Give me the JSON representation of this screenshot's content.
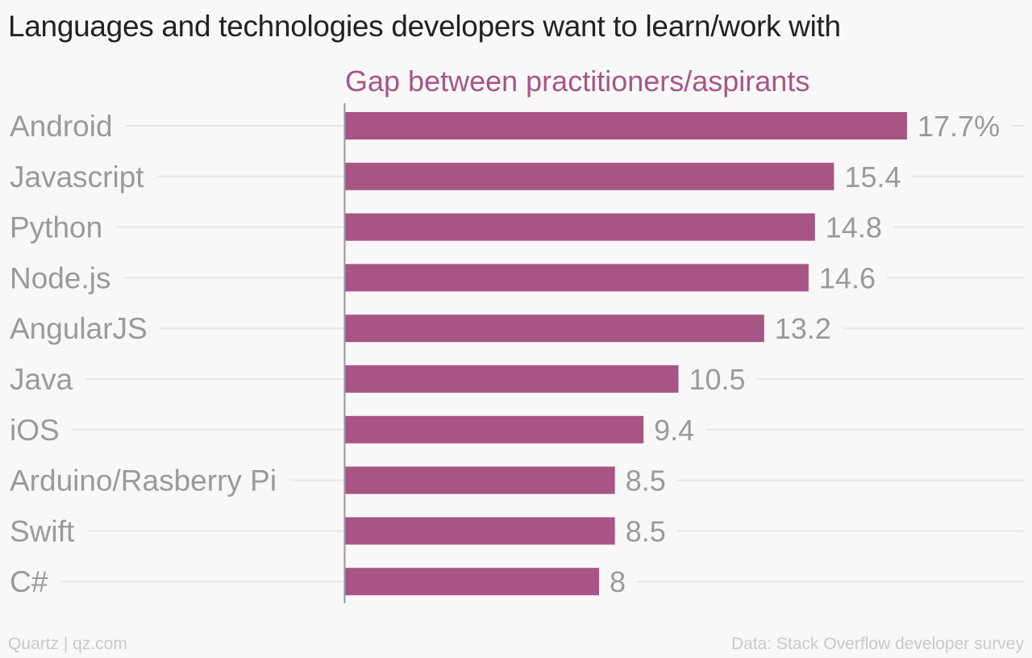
{
  "title": "Languages and technologies developers want to learn/work with",
  "footer": {
    "source_left": "Quartz | qz.com",
    "source_right": "Data: Stack Overflow developer survey"
  },
  "colors": {
    "bar": "#a85586",
    "series_title": "#a85586",
    "label_text": "#9a9a9a",
    "gridline": "#e6e6e6",
    "axis": "#999999",
    "background": "#f8f8f8"
  },
  "chart_data": {
    "type": "bar",
    "orientation": "horizontal",
    "series": [
      {
        "name": "Gap between practitioners/aspirants",
        "values": [
          17.7,
          15.4,
          14.8,
          14.6,
          13.2,
          10.5,
          9.4,
          8.5,
          8.5,
          8
        ]
      }
    ],
    "categories": [
      "Android",
      "Javascript",
      "Python",
      "Node.js",
      "AngularJS",
      "Java",
      "iOS",
      "Arduino/Rasberry Pi",
      "Swift",
      "C#"
    ],
    "value_labels": [
      "17.7%",
      "15.4",
      "14.8",
      "14.6",
      "13.2",
      "10.5",
      "9.4",
      "8.5",
      "8.5",
      "8"
    ],
    "xlim": [
      0,
      17.7
    ],
    "grid": true,
    "legend": "none"
  }
}
